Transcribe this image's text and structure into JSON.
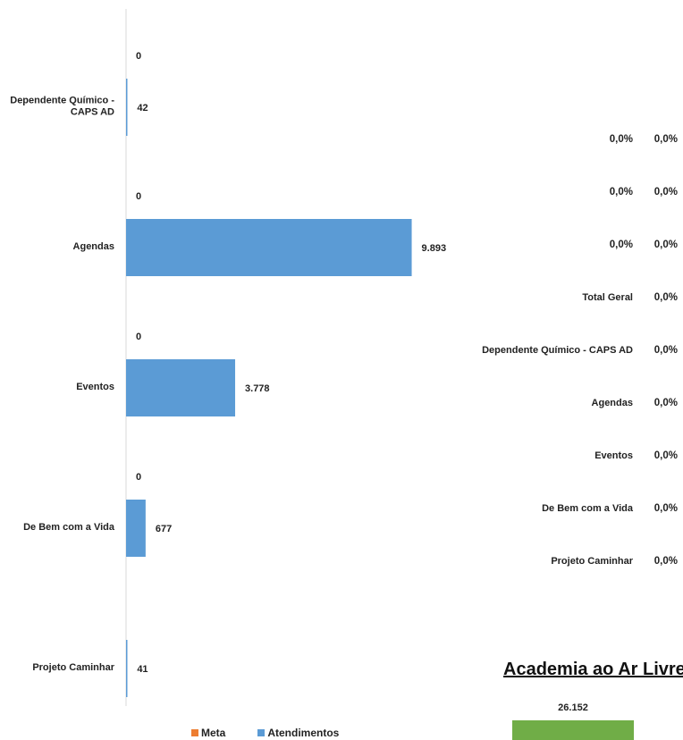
{
  "chart_data": {
    "type": "bar",
    "orientation": "horizontal",
    "categories": [
      "Dependente Químico - CAPS AD",
      "Agendas",
      "Eventos",
      "De Bem com a Vida",
      "Projeto Caminhar"
    ],
    "category_lines": [
      [
        "Dependente Químico -",
        "CAPS AD"
      ],
      [
        "Agendas"
      ],
      [
        "Eventos"
      ],
      [
        "De Bem com a Vida"
      ],
      [
        "Projeto Caminhar"
      ]
    ],
    "series": [
      {
        "name": "Meta",
        "color": "#ed7d31",
        "values": [
          0,
          0,
          0,
          0,
          null
        ],
        "labels": [
          "0",
          "0",
          "0",
          "0",
          ""
        ]
      },
      {
        "name": "Atendimentos",
        "color": "#5b9bd5",
        "values": [
          42,
          9893,
          3778,
          677,
          41
        ],
        "labels": [
          "42",
          "9.893",
          "3.778",
          "677",
          "41"
        ]
      }
    ],
    "xlim": [
      0,
      20000
    ],
    "legend_position": "bottom"
  },
  "side_table": [
    {
      "label": "",
      "pct": "0,0%",
      "extra": "0,0%"
    },
    {
      "label": "",
      "pct": "0,0%",
      "extra": "0,0%"
    },
    {
      "label": "",
      "pct": "0,0%",
      "extra": "0,0%"
    },
    {
      "label": "Total Geral",
      "pct": "0,0%"
    },
    {
      "label": "Dependente Químico - CAPS AD",
      "pct": "0,0%"
    },
    {
      "label": "Agendas",
      "pct": "0,0%"
    },
    {
      "label": "Eventos",
      "pct": "0,0%"
    },
    {
      "label": "De Bem com a Vida",
      "pct": "0,0%"
    },
    {
      "label": "Projeto Caminhar",
      "pct": "0,0%"
    }
  ],
  "academia": {
    "title": "Academia ao Ar Livre",
    "value": 26152,
    "value_label": "26.152",
    "color": "#70ad47"
  }
}
